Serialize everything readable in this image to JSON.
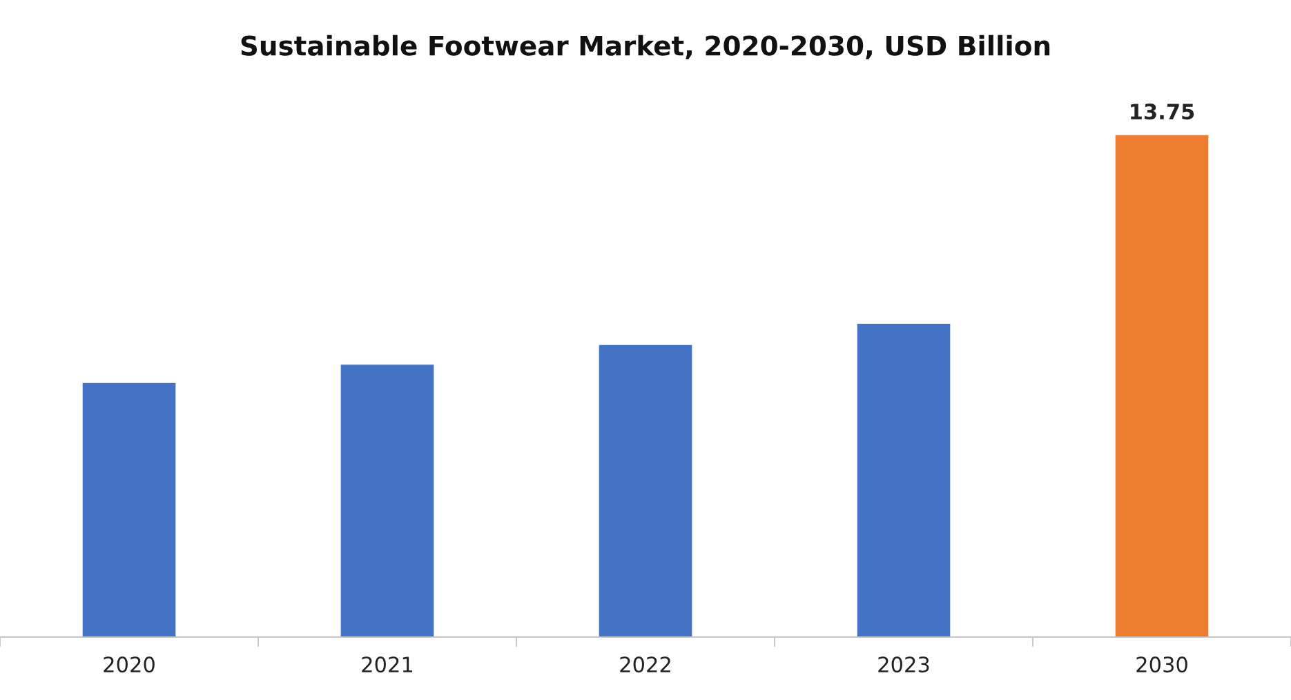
{
  "chart_data": {
    "type": "bar",
    "title": "Sustainable Footwear Market, 2020-2030, USD Billion",
    "categories": [
      "2020",
      "2021",
      "2022",
      "2023",
      "2030"
    ],
    "values": [
      6.96,
      7.46,
      8.0,
      8.58,
      13.75
    ],
    "colors": [
      "#4472c4",
      "#4472c4",
      "#4472c4",
      "#4472c4",
      "#ed7d31"
    ],
    "value_labels": [
      null,
      null,
      null,
      null,
      "13.75"
    ]
  }
}
